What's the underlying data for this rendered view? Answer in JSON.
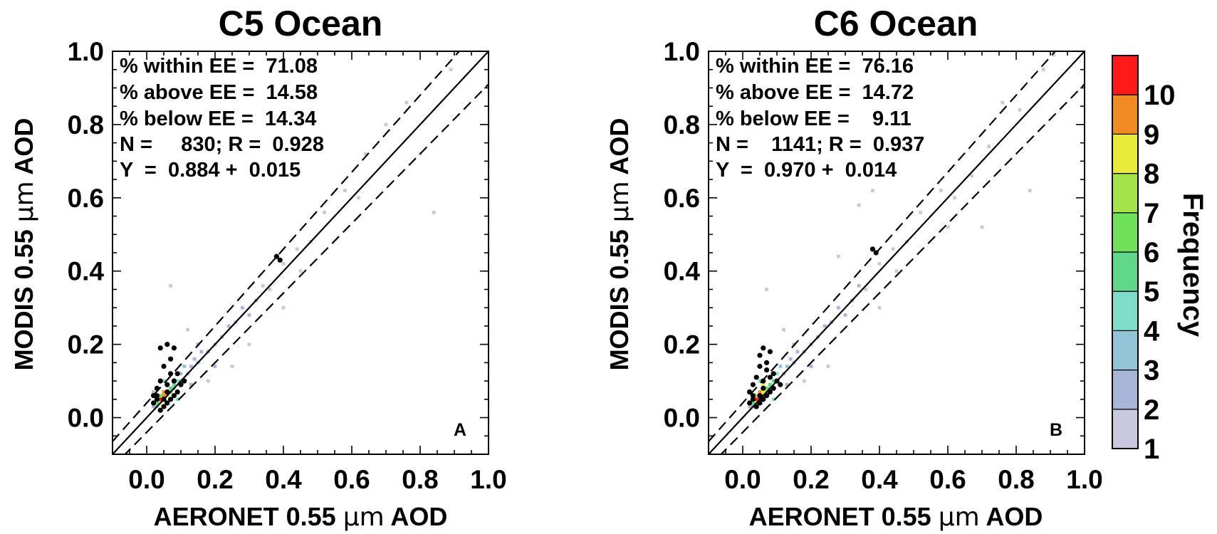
{
  "figure": {
    "colorbar": {
      "label": "Frequency",
      "ticks": [
        "1",
        "2",
        "3",
        "4",
        "5",
        "6",
        "7",
        "8",
        "9",
        "10"
      ],
      "colors": [
        "#c8c8e0",
        "#a9b6d8",
        "#92c6d6",
        "#7fdcc8",
        "#5fd68a",
        "#6ee05a",
        "#a6e24a",
        "#eaea3a",
        "#f08a22",
        "#ff1a1a"
      ]
    }
  },
  "chart_data": [
    {
      "type": "heatmap",
      "title": "C5 Ocean",
      "xlabel_prefix": "AERONET 0.55 ",
      "xlabel_suffix": " AOD",
      "ylabel_prefix": "MODIS 0.55 ",
      "ylabel_suffix": " AOD",
      "unit_symbol": "μm",
      "xlim": [
        -0.1,
        1.0
      ],
      "ylim": [
        -0.1,
        1.0
      ],
      "xticks": [
        "0.0",
        "0.2",
        "0.4",
        "0.6",
        "0.8",
        "1.0"
      ],
      "yticks": [
        "0.0",
        "0.2",
        "0.4",
        "0.6",
        "0.8",
        "1.0"
      ],
      "panel_label": "A",
      "stats": {
        "within": "% within EE =  71.08",
        "above": "% above EE =  14.58",
        "below": "% below EE =  14.34",
        "n_r": "N =     830; R =  0.928",
        "fit": "Y  =  0.884 +  0.015"
      },
      "lines": {
        "one_to_one": {
          "slope": 1.0,
          "intercept": 0.0
        },
        "ee_upper": {
          "slope": 1.05,
          "intercept": 0.04
        },
        "ee_lower": {
          "slope": 0.95,
          "intercept": -0.04
        }
      },
      "black_points": [
        [
          0.02,
          0.04
        ],
        [
          0.03,
          0.06
        ],
        [
          0.04,
          0.02
        ],
        [
          0.05,
          0.03
        ],
        [
          0.03,
          0.05
        ],
        [
          0.05,
          0.05
        ],
        [
          0.06,
          0.04
        ],
        [
          0.06,
          0.07
        ],
        [
          0.07,
          0.05
        ],
        [
          0.08,
          0.06
        ],
        [
          0.06,
          0.09
        ],
        [
          0.07,
          0.12
        ],
        [
          0.08,
          0.1
        ],
        [
          0.09,
          0.07
        ],
        [
          0.04,
          0.19
        ],
        [
          0.06,
          0.2
        ],
        [
          0.08,
          0.19
        ],
        [
          0.03,
          0.08
        ],
        [
          0.09,
          0.12
        ],
        [
          0.1,
          0.09
        ],
        [
          0.04,
          0.1
        ],
        [
          0.05,
          0.14
        ],
        [
          0.07,
          0.16
        ],
        [
          0.02,
          0.06
        ],
        [
          0.11,
          0.1
        ],
        [
          0.38,
          0.44
        ],
        [
          0.39,
          0.43
        ]
      ],
      "density_points": [
        [
          0.02,
          0.03,
          2
        ],
        [
          0.03,
          0.03,
          3
        ],
        [
          0.03,
          0.04,
          5
        ],
        [
          0.04,
          0.04,
          8
        ],
        [
          0.04,
          0.05,
          10
        ],
        [
          0.05,
          0.05,
          10
        ],
        [
          0.05,
          0.06,
          9
        ],
        [
          0.06,
          0.06,
          8
        ],
        [
          0.06,
          0.07,
          7
        ],
        [
          0.07,
          0.07,
          6
        ],
        [
          0.07,
          0.08,
          5
        ],
        [
          0.08,
          0.08,
          4
        ],
        [
          0.06,
          0.09,
          8
        ],
        [
          0.05,
          0.07,
          9
        ],
        [
          0.04,
          0.06,
          6
        ],
        [
          0.08,
          0.09,
          5
        ],
        [
          0.09,
          0.1,
          4
        ],
        [
          0.1,
          0.1,
          4
        ],
        [
          0.1,
          0.12,
          3
        ],
        [
          0.12,
          0.12,
          3
        ],
        [
          0.11,
          0.14,
          3
        ],
        [
          0.13,
          0.14,
          2
        ],
        [
          0.14,
          0.16,
          2
        ],
        [
          0.15,
          0.15,
          3
        ],
        [
          0.16,
          0.18,
          2
        ],
        [
          0.18,
          0.18,
          2
        ],
        [
          0.2,
          0.2,
          2
        ],
        [
          0.22,
          0.22,
          2
        ],
        [
          0.24,
          0.25,
          2
        ],
        [
          0.26,
          0.26,
          2
        ],
        [
          0.28,
          0.3,
          2
        ],
        [
          0.3,
          0.28,
          2
        ],
        [
          0.32,
          0.32,
          2
        ],
        [
          0.34,
          0.36,
          1
        ],
        [
          0.36,
          0.35,
          1
        ],
        [
          0.4,
          0.42,
          1
        ],
        [
          0.44,
          0.46,
          1
        ],
        [
          0.48,
          0.48,
          1
        ],
        [
          0.52,
          0.56,
          1
        ],
        [
          0.58,
          0.62,
          1
        ],
        [
          0.62,
          0.6,
          1
        ],
        [
          0.64,
          0.72,
          1
        ],
        [
          0.7,
          0.8,
          1
        ],
        [
          0.76,
          0.86,
          1
        ],
        [
          0.8,
          0.72,
          1
        ],
        [
          0.84,
          0.56,
          1
        ],
        [
          0.89,
          0.95,
          1
        ],
        [
          0.07,
          0.36,
          1
        ],
        [
          0.12,
          0.24,
          1
        ],
        [
          0.18,
          0.1,
          1
        ],
        [
          0.25,
          0.14,
          1
        ],
        [
          0.3,
          0.2,
          1
        ],
        [
          0.4,
          0.3,
          1
        ],
        [
          0.45,
          0.4,
          1
        ],
        [
          0.05,
          0.1,
          4
        ],
        [
          0.09,
          0.05,
          4
        ],
        [
          0.02,
          0.07,
          2
        ],
        [
          0.13,
          0.09,
          2
        ],
        [
          0.15,
          0.2,
          2
        ],
        [
          0.2,
          0.14,
          2
        ]
      ]
    },
    {
      "type": "heatmap",
      "title": "C6 Ocean",
      "xlabel_prefix": "AERONET 0.55 ",
      "xlabel_suffix": " AOD",
      "ylabel_prefix": "MODIS 0.55 ",
      "ylabel_suffix": " AOD",
      "unit_symbol": "μm",
      "xlim": [
        -0.1,
        1.0
      ],
      "ylim": [
        -0.1,
        1.0
      ],
      "xticks": [
        "0.0",
        "0.2",
        "0.4",
        "0.6",
        "0.8",
        "1.0"
      ],
      "yticks": [
        "0.0",
        "0.2",
        "0.4",
        "0.6",
        "0.8",
        "1.0"
      ],
      "panel_label": "B",
      "stats": {
        "within": "% within EE =  76.16",
        "above": "% above EE =  14.72",
        "below": "% below EE =    9.11",
        "n_r": "N =    1141; R =  0.937",
        "fit": "Y  =  0.970 +  0.014"
      },
      "lines": {
        "one_to_one": {
          "slope": 1.0,
          "intercept": 0.0
        },
        "ee_upper": {
          "slope": 1.05,
          "intercept": 0.04
        },
        "ee_lower": {
          "slope": 0.95,
          "intercept": -0.04
        }
      },
      "black_points": [
        [
          0.02,
          0.04
        ],
        [
          0.03,
          0.06
        ],
        [
          0.04,
          0.03
        ],
        [
          0.05,
          0.04
        ],
        [
          0.03,
          0.05
        ],
        [
          0.05,
          0.06
        ],
        [
          0.06,
          0.05
        ],
        [
          0.06,
          0.08
        ],
        [
          0.07,
          0.06
        ],
        [
          0.08,
          0.07
        ],
        [
          0.06,
          0.1
        ],
        [
          0.07,
          0.13
        ],
        [
          0.08,
          0.11
        ],
        [
          0.09,
          0.08
        ],
        [
          0.05,
          0.17
        ],
        [
          0.06,
          0.19
        ],
        [
          0.08,
          0.18
        ],
        [
          0.03,
          0.09
        ],
        [
          0.09,
          0.12
        ],
        [
          0.1,
          0.1
        ],
        [
          0.04,
          0.11
        ],
        [
          0.05,
          0.14
        ],
        [
          0.07,
          0.15
        ],
        [
          0.02,
          0.07
        ],
        [
          0.11,
          0.09
        ],
        [
          0.38,
          0.46
        ],
        [
          0.39,
          0.45
        ]
      ],
      "density_points": [
        [
          0.02,
          0.03,
          2
        ],
        [
          0.03,
          0.03,
          3
        ],
        [
          0.03,
          0.04,
          5
        ],
        [
          0.04,
          0.04,
          8
        ],
        [
          0.04,
          0.05,
          10
        ],
        [
          0.05,
          0.05,
          10
        ],
        [
          0.05,
          0.06,
          9
        ],
        [
          0.06,
          0.06,
          9
        ],
        [
          0.06,
          0.07,
          8
        ],
        [
          0.07,
          0.07,
          7
        ],
        [
          0.07,
          0.08,
          6
        ],
        [
          0.08,
          0.08,
          5
        ],
        [
          0.06,
          0.09,
          8
        ],
        [
          0.05,
          0.07,
          9
        ],
        [
          0.04,
          0.06,
          7
        ],
        [
          0.08,
          0.09,
          5
        ],
        [
          0.09,
          0.1,
          5
        ],
        [
          0.1,
          0.1,
          4
        ],
        [
          0.1,
          0.12,
          4
        ],
        [
          0.12,
          0.12,
          3
        ],
        [
          0.11,
          0.14,
          3
        ],
        [
          0.13,
          0.14,
          3
        ],
        [
          0.14,
          0.16,
          2
        ],
        [
          0.15,
          0.15,
          3
        ],
        [
          0.16,
          0.18,
          2
        ],
        [
          0.18,
          0.18,
          2
        ],
        [
          0.2,
          0.2,
          2
        ],
        [
          0.22,
          0.22,
          2
        ],
        [
          0.24,
          0.25,
          2
        ],
        [
          0.26,
          0.26,
          2
        ],
        [
          0.28,
          0.3,
          2
        ],
        [
          0.3,
          0.28,
          2
        ],
        [
          0.32,
          0.32,
          2
        ],
        [
          0.34,
          0.36,
          2
        ],
        [
          0.36,
          0.35,
          1
        ],
        [
          0.4,
          0.42,
          1
        ],
        [
          0.44,
          0.46,
          1
        ],
        [
          0.48,
          0.48,
          1
        ],
        [
          0.52,
          0.56,
          1
        ],
        [
          0.58,
          0.62,
          1
        ],
        [
          0.62,
          0.6,
          1
        ],
        [
          0.67,
          0.66,
          1
        ],
        [
          0.72,
          0.74,
          1
        ],
        [
          0.76,
          0.86,
          1
        ],
        [
          0.84,
          0.62,
          1
        ],
        [
          0.81,
          0.84,
          1
        ],
        [
          0.88,
          0.95,
          1
        ],
        [
          0.91,
          0.99,
          1
        ],
        [
          0.07,
          0.35,
          1
        ],
        [
          0.12,
          0.24,
          1
        ],
        [
          0.18,
          0.1,
          1
        ],
        [
          0.25,
          0.14,
          1
        ],
        [
          0.28,
          0.44,
          1
        ],
        [
          0.4,
          0.3,
          1
        ],
        [
          0.45,
          0.4,
          1
        ],
        [
          0.05,
          0.1,
          4
        ],
        [
          0.09,
          0.05,
          4
        ],
        [
          0.02,
          0.07,
          3
        ],
        [
          0.13,
          0.09,
          2
        ],
        [
          0.15,
          0.2,
          2
        ],
        [
          0.2,
          0.14,
          2
        ],
        [
          0.34,
          0.58,
          1
        ],
        [
          0.38,
          0.62,
          1
        ],
        [
          0.6,
          0.52,
          1
        ],
        [
          0.7,
          0.52,
          1
        ]
      ]
    }
  ]
}
